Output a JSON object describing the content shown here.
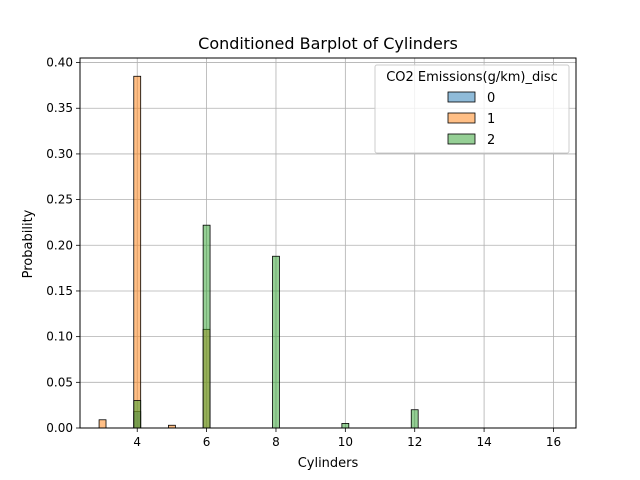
{
  "chart_data": {
    "type": "bar",
    "title": "Conditioned Barplot of Cylinders",
    "xlabel": "Cylinders",
    "ylabel": "Probability",
    "xlim": [
      2.35,
      16.65
    ],
    "ylim": [
      0,
      0.405
    ],
    "xticks": [
      4,
      6,
      8,
      10,
      12,
      14,
      16
    ],
    "yticks": [
      0.0,
      0.05,
      0.1,
      0.15,
      0.2,
      0.25,
      0.3,
      0.35,
      0.4
    ],
    "grid": true,
    "legend": {
      "title": "CO2 Emissions(g/km)_disc",
      "placement": "top-right"
    },
    "bar_width": 0.2,
    "series": [
      {
        "name": "0",
        "color": "#1f77b4",
        "points": [
          {
            "x": 4,
            "y": 0.018
          }
        ]
      },
      {
        "name": "1",
        "color": "#ff7f0e",
        "points": [
          {
            "x": 3,
            "y": 0.009
          },
          {
            "x": 4,
            "y": 0.385
          },
          {
            "x": 5,
            "y": 0.003
          },
          {
            "x": 6,
            "y": 0.108
          }
        ]
      },
      {
        "name": "2",
        "color": "#2ca02c",
        "points": [
          {
            "x": 4,
            "y": 0.03
          },
          {
            "x": 6,
            "y": 0.222
          },
          {
            "x": 8,
            "y": 0.188
          },
          {
            "x": 10,
            "y": 0.005
          },
          {
            "x": 12,
            "y": 0.02
          }
        ]
      }
    ]
  }
}
